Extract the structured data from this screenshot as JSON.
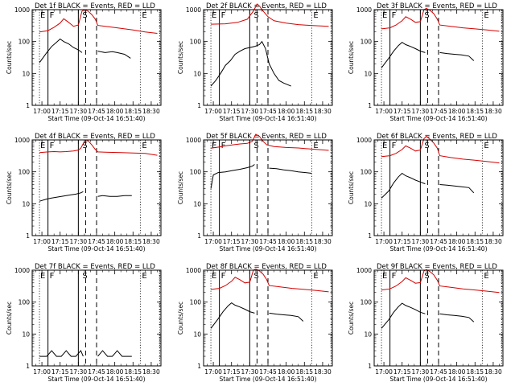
{
  "chart_data": {
    "type": "line",
    "yscale": "log",
    "ylim": [
      1,
      1000
    ],
    "xlim_minutes_after_1700": [
      -8,
      98
    ],
    "xtick_labels": [
      "17:00",
      "17:15",
      "17:30",
      "17:45",
      "18:00",
      "18:15",
      "18:30"
    ],
    "xtick_minutes": [
      0,
      15,
      30,
      45,
      60,
      75,
      90
    ],
    "ytick_labels": [
      "1",
      "10",
      "100",
      "1000"
    ],
    "ytick_values": [
      1,
      10,
      100,
      1000
    ],
    "ylabel": "Counts/sec",
    "xlabel": "Start Time (09-Oct-14 16:51:40)",
    "marker_labels": [
      "E",
      "F",
      "S",
      "E"
    ],
    "markers": {
      "dotted": [
        -2,
        81,
        97
      ],
      "solid": [
        5,
        30
      ],
      "dashed": [
        36,
        45
      ]
    },
    "series_colors": {
      "events": "#000000",
      "lld": "#d40000"
    },
    "panels": [
      {
        "title": "Det 1f BLACK = Events, RED = LLD",
        "events": [
          [
            -2,
            22
          ],
          [
            4,
            45
          ],
          [
            8,
            70
          ],
          [
            12,
            95
          ],
          [
            15,
            120
          ],
          [
            18,
            100
          ],
          [
            22,
            85
          ],
          [
            26,
            65
          ],
          [
            30,
            55
          ],
          [
            33,
            45
          ],
          [
            36,
            null
          ],
          [
            45,
            null
          ],
          [
            46,
            50
          ],
          [
            52,
            45
          ],
          [
            58,
            48
          ],
          [
            62,
            45
          ],
          [
            68,
            40
          ],
          [
            73,
            30
          ]
        ],
        "lld": [
          [
            -2,
            200
          ],
          [
            5,
            220
          ],
          [
            10,
            280
          ],
          [
            15,
            380
          ],
          [
            18,
            520
          ],
          [
            22,
            400
          ],
          [
            26,
            300
          ],
          [
            30,
            330
          ],
          [
            33,
            900
          ],
          [
            35,
            1000
          ],
          [
            38,
            900
          ],
          [
            41,
            700
          ],
          [
            44,
            500
          ],
          [
            46,
            320
          ],
          [
            55,
            290
          ],
          [
            65,
            260
          ],
          [
            75,
            230
          ],
          [
            85,
            200
          ],
          [
            95,
            180
          ]
        ]
      },
      {
        "title": "Det 2f BLACK = Events, RED = LLD",
        "events": [
          [
            -2,
            4
          ],
          [
            2,
            6
          ],
          [
            6,
            10
          ],
          [
            10,
            18
          ],
          [
            14,
            25
          ],
          [
            18,
            40
          ],
          [
            22,
            50
          ],
          [
            26,
            60
          ],
          [
            30,
            65
          ],
          [
            34,
            70
          ],
          [
            38,
            80
          ],
          [
            40,
            100
          ],
          [
            43,
            60
          ],
          [
            46,
            20
          ],
          [
            50,
            10
          ],
          [
            54,
            6
          ],
          [
            58,
            5
          ],
          [
            64,
            4
          ]
        ],
        "lld": [
          [
            -2,
            350
          ],
          [
            10,
            360
          ],
          [
            20,
            400
          ],
          [
            28,
            500
          ],
          [
            33,
            900
          ],
          [
            36,
            1500
          ],
          [
            38,
            1300
          ],
          [
            41,
            900
          ],
          [
            45,
            600
          ],
          [
            50,
            450
          ],
          [
            60,
            380
          ],
          [
            70,
            340
          ],
          [
            80,
            320
          ],
          [
            95,
            300
          ]
        ]
      },
      {
        "title": "Det 3f BLACK = Events, RED = LLD",
        "events": [
          [
            -2,
            15
          ],
          [
            4,
            30
          ],
          [
            8,
            50
          ],
          [
            12,
            75
          ],
          [
            15,
            95
          ],
          [
            18,
            80
          ],
          [
            22,
            70
          ],
          [
            26,
            60
          ],
          [
            30,
            50
          ],
          [
            34,
            45
          ],
          [
            36,
            null
          ],
          [
            45,
            null
          ],
          [
            46,
            45
          ],
          [
            52,
            42
          ],
          [
            58,
            40
          ],
          [
            64,
            38
          ],
          [
            70,
            35
          ],
          [
            74,
            25
          ]
        ],
        "lld": [
          [
            -2,
            250
          ],
          [
            5,
            270
          ],
          [
            10,
            330
          ],
          [
            15,
            450
          ],
          [
            18,
            600
          ],
          [
            22,
            500
          ],
          [
            26,
            400
          ],
          [
            30,
            420
          ],
          [
            33,
            1000
          ],
          [
            35,
            1100
          ],
          [
            38,
            950
          ],
          [
            41,
            750
          ],
          [
            44,
            500
          ],
          [
            46,
            330
          ],
          [
            55,
            300
          ],
          [
            65,
            270
          ],
          [
            75,
            250
          ],
          [
            85,
            230
          ],
          [
            95,
            210
          ]
        ]
      },
      {
        "title": "Det 4f BLACK = Events, RED = LLD",
        "events": [
          [
            -2,
            12
          ],
          [
            4,
            14
          ],
          [
            8,
            15
          ],
          [
            12,
            16
          ],
          [
            16,
            17
          ],
          [
            20,
            18
          ],
          [
            24,
            19
          ],
          [
            28,
            20
          ],
          [
            32,
            22
          ],
          [
            34,
            24
          ],
          [
            36,
            null
          ],
          [
            45,
            null
          ],
          [
            46,
            17
          ],
          [
            50,
            18
          ],
          [
            56,
            17
          ],
          [
            62,
            17
          ],
          [
            68,
            18
          ],
          [
            74,
            18
          ]
        ],
        "lld": [
          [
            -2,
            400
          ],
          [
            5,
            420
          ],
          [
            10,
            430
          ],
          [
            15,
            420
          ],
          [
            20,
            430
          ],
          [
            26,
            450
          ],
          [
            30,
            480
          ],
          [
            32,
            550
          ],
          [
            35,
            900
          ],
          [
            38,
            950
          ],
          [
            41,
            700
          ],
          [
            44,
            500
          ],
          [
            46,
            420
          ],
          [
            55,
            410
          ],
          [
            65,
            400
          ],
          [
            75,
            390
          ],
          [
            85,
            380
          ],
          [
            95,
            330
          ]
        ]
      },
      {
        "title": "Det 5f BLACK = Events, RED = LLD",
        "events": [
          [
            -2,
            30
          ],
          [
            0,
            80
          ],
          [
            4,
            95
          ],
          [
            10,
            100
          ],
          [
            16,
            110
          ],
          [
            22,
            120
          ],
          [
            28,
            135
          ],
          [
            32,
            150
          ],
          [
            34,
            170
          ],
          [
            36,
            null
          ],
          [
            45,
            null
          ],
          [
            46,
            130
          ],
          [
            52,
            125
          ],
          [
            58,
            115
          ],
          [
            64,
            108
          ],
          [
            70,
            100
          ],
          [
            76,
            95
          ],
          [
            81,
            90
          ]
        ],
        "lld": [
          [
            -2,
            550
          ],
          [
            5,
            600
          ],
          [
            10,
            650
          ],
          [
            16,
            700
          ],
          [
            22,
            750
          ],
          [
            28,
            780
          ],
          [
            32,
            900
          ],
          [
            35,
            1500
          ],
          [
            38,
            1300
          ],
          [
            41,
            900
          ],
          [
            44,
            700
          ],
          [
            50,
            620
          ],
          [
            60,
            580
          ],
          [
            70,
            560
          ],
          [
            80,
            520
          ],
          [
            95,
            470
          ]
        ]
      },
      {
        "title": "Det 6f BLACK = Events, RED = LLD",
        "events": [
          [
            -2,
            15
          ],
          [
            4,
            25
          ],
          [
            8,
            45
          ],
          [
            12,
            70
          ],
          [
            15,
            90
          ],
          [
            18,
            75
          ],
          [
            22,
            65
          ],
          [
            26,
            55
          ],
          [
            30,
            48
          ],
          [
            34,
            42
          ],
          [
            36,
            null
          ],
          [
            45,
            null
          ],
          [
            46,
            40
          ],
          [
            52,
            38
          ],
          [
            58,
            36
          ],
          [
            64,
            34
          ],
          [
            70,
            32
          ],
          [
            74,
            22
          ]
        ],
        "lld": [
          [
            -2,
            300
          ],
          [
            5,
            320
          ],
          [
            10,
            380
          ],
          [
            15,
            500
          ],
          [
            18,
            650
          ],
          [
            22,
            550
          ],
          [
            26,
            450
          ],
          [
            30,
            480
          ],
          [
            33,
            1100
          ],
          [
            35,
            1300
          ],
          [
            38,
            1050
          ],
          [
            41,
            800
          ],
          [
            44,
            550
          ],
          [
            46,
            320
          ],
          [
            55,
            280
          ],
          [
            65,
            250
          ],
          [
            75,
            230
          ],
          [
            85,
            210
          ],
          [
            95,
            190
          ]
        ]
      },
      {
        "title": "Det 7f BLACK = Events, RED = LLD",
        "events": [
          [
            -2,
            2
          ],
          [
            4,
            2
          ],
          [
            8,
            3
          ],
          [
            12,
            2
          ],
          [
            16,
            2
          ],
          [
            20,
            3
          ],
          [
            24,
            2
          ],
          [
            28,
            2
          ],
          [
            32,
            3
          ],
          [
            34,
            2
          ],
          [
            36,
            null
          ],
          [
            45,
            null
          ],
          [
            46,
            2
          ],
          [
            50,
            3
          ],
          [
            54,
            2
          ],
          [
            58,
            2
          ],
          [
            62,
            3
          ],
          [
            66,
            2
          ],
          [
            70,
            2
          ],
          [
            74,
            2
          ]
        ],
        "lld": []
      },
      {
        "title": "Det 8f BLACK = Events, RED = LLD",
        "events": [
          [
            -2,
            15
          ],
          [
            4,
            30
          ],
          [
            8,
            50
          ],
          [
            12,
            75
          ],
          [
            15,
            95
          ],
          [
            18,
            80
          ],
          [
            22,
            70
          ],
          [
            26,
            60
          ],
          [
            30,
            50
          ],
          [
            34,
            45
          ],
          [
            36,
            null
          ],
          [
            45,
            null
          ],
          [
            46,
            45
          ],
          [
            52,
            42
          ],
          [
            58,
            40
          ],
          [
            64,
            38
          ],
          [
            70,
            35
          ],
          [
            74,
            25
          ]
        ],
        "lld": [
          [
            -2,
            250
          ],
          [
            5,
            270
          ],
          [
            10,
            330
          ],
          [
            15,
            450
          ],
          [
            18,
            600
          ],
          [
            22,
            500
          ],
          [
            26,
            400
          ],
          [
            30,
            420
          ],
          [
            33,
            1000
          ],
          [
            35,
            1100
          ],
          [
            38,
            950
          ],
          [
            41,
            750
          ],
          [
            44,
            500
          ],
          [
            46,
            330
          ],
          [
            55,
            300
          ],
          [
            65,
            270
          ],
          [
            75,
            250
          ],
          [
            85,
            230
          ],
          [
            95,
            210
          ]
        ]
      },
      {
        "title": "Det 9f BLACK = Events, RED = LLD",
        "events": [
          [
            -2,
            15
          ],
          [
            4,
            28
          ],
          [
            8,
            48
          ],
          [
            12,
            72
          ],
          [
            15,
            92
          ],
          [
            18,
            78
          ],
          [
            22,
            68
          ],
          [
            26,
            58
          ],
          [
            30,
            48
          ],
          [
            34,
            43
          ],
          [
            36,
            null
          ],
          [
            45,
            null
          ],
          [
            46,
            43
          ],
          [
            52,
            40
          ],
          [
            58,
            38
          ],
          [
            64,
            36
          ],
          [
            70,
            33
          ],
          [
            74,
            24
          ]
        ],
        "lld": [
          [
            -2,
            240
          ],
          [
            5,
            260
          ],
          [
            10,
            320
          ],
          [
            15,
            440
          ],
          [
            18,
            580
          ],
          [
            22,
            480
          ],
          [
            26,
            390
          ],
          [
            30,
            410
          ],
          [
            33,
            950
          ],
          [
            35,
            1050
          ],
          [
            38,
            900
          ],
          [
            41,
            720
          ],
          [
            44,
            480
          ],
          [
            46,
            320
          ],
          [
            55,
            290
          ],
          [
            65,
            260
          ],
          [
            75,
            240
          ],
          [
            85,
            220
          ],
          [
            95,
            200
          ]
        ]
      }
    ]
  }
}
